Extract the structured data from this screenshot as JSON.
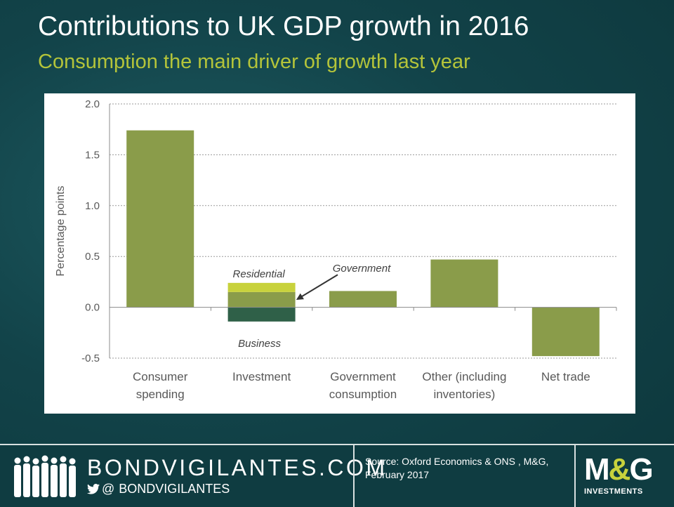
{
  "slide": {
    "title": "Contributions to UK GDP growth in 2016",
    "subtitle": "Consumption the main driver of growth last year"
  },
  "chart_data": {
    "type": "bar",
    "stacked": true,
    "categories": [
      "Consumer spending",
      "Investment",
      "Government consumption",
      "Other (including inventories)",
      "Net trade"
    ],
    "category_label_lines": [
      [
        "Consumer",
        "spending"
      ],
      [
        "Investment"
      ],
      [
        "Government",
        "consumption"
      ],
      [
        "Other (including",
        "inventories)"
      ],
      [
        "Net trade"
      ]
    ],
    "series": [
      {
        "name": "Consumer spending",
        "color": "#8a9c4a",
        "values": [
          1.74,
          null,
          null,
          null,
          null
        ]
      },
      {
        "name": "Business",
        "color": "#2f6048",
        "values": [
          null,
          -0.14,
          null,
          null,
          null
        ]
      },
      {
        "name": "Government",
        "color": "#8a9c4a",
        "values": [
          null,
          0.15,
          null,
          null,
          null
        ]
      },
      {
        "name": "Residential",
        "color": "#c8d23c",
        "values": [
          null,
          0.09,
          null,
          null,
          null
        ]
      },
      {
        "name": "Government consumption",
        "color": "#8a9c4a",
        "values": [
          null,
          null,
          0.16,
          null,
          null
        ]
      },
      {
        "name": "Other (including inventories)",
        "color": "#8a9c4a",
        "values": [
          null,
          null,
          null,
          0.47,
          null
        ]
      },
      {
        "name": "Net trade",
        "color": "#8a9c4a",
        "values": [
          null,
          null,
          null,
          null,
          -0.48
        ]
      }
    ],
    "ylabel": "Percentage points",
    "xlabel": "",
    "ylim": [
      -0.5,
      2.0
    ],
    "yticks": [
      -0.5,
      0.0,
      0.5,
      1.0,
      1.5,
      2.0
    ],
    "ytick_labels": [
      "-0.5",
      "0.0",
      "0.5",
      "1.0",
      "1.5",
      "2.0"
    ],
    "grid": "horizontal dotted",
    "annotations": {
      "residential": "Residential",
      "government": "Government",
      "business": "Business"
    }
  },
  "footer": {
    "brand": "BONDVIGILANTES.COM",
    "twitter_handle": "BONDVIGILANTES",
    "at_symbol": "@",
    "twitter_icon": "twitter-bird-icon",
    "people_icon": "crowd-silhouette-icon",
    "source_line1": "Source: Oxford Economics & ONS , M&G,",
    "source_line2": "February 2017",
    "logo_m": "M",
    "logo_amp": "&",
    "logo_g": "G",
    "logo_sub": "INVESTMENTS",
    "accent": "#c8d23c"
  }
}
